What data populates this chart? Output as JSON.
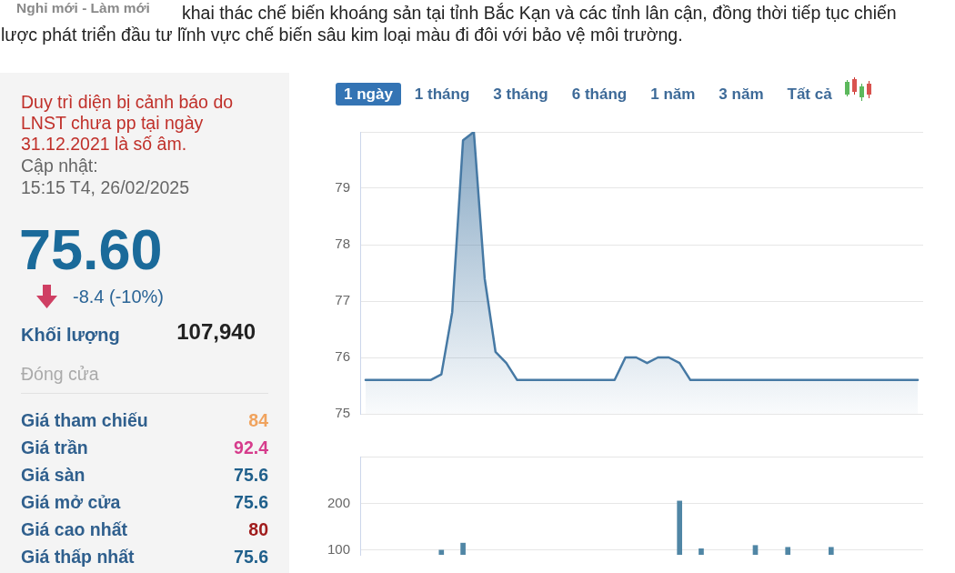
{
  "chart_data": [
    {
      "type": "other",
      "annotations": [
        "Nghỉ mới - Làm mới",
        "khai thác chế biến khoáng sản tại tỉnh Bắc Kạn và các tỉnh lân cận, đồng thời tiếp tục chiến",
        "lược phát triển đầu tư lĩnh vực chế biến sâu kim loại màu đi đôi với bảo vệ môi trường."
      ]
    },
    {
      "type": "other",
      "annotations": [
        "Duy trì diện bị cảnh báo do LNST chưa pp tại ngày 31.12.2021 là số âm.",
        "Cập nhật:",
        "15:15 T4, 26/02/2025",
        "75.60",
        "-8.4 (-10%)",
        "Khối lượng",
        "107,940",
        "Đóng cửa"
      ],
      "categories": [
        "Giá tham chiếu",
        "Giá trần",
        "Giá sàn",
        "Giá mở cửa",
        "Giá cao nhất",
        "Giá thấp nhất"
      ],
      "values": [
        84,
        92.4,
        75.6,
        75.6,
        80,
        75.6
      ],
      "data_labels": true
    },
    {
      "type": "other",
      "annotations": [
        "1 ngày",
        "1 tháng",
        "3 tháng",
        "6 tháng",
        "1 năm",
        "3 năm",
        "Tất cả"
      ]
    },
    {
      "type": "area",
      "categories": [
        null,
        null,
        null,
        null,
        null,
        null,
        null,
        null,
        null,
        null,
        null,
        null,
        null,
        null,
        null,
        null,
        null,
        null,
        null,
        null,
        null,
        null,
        null,
        null,
        null,
        null,
        null,
        null,
        null,
        null,
        null,
        null,
        null,
        null,
        null,
        null,
        null,
        null,
        null,
        null,
        null,
        null,
        null,
        null,
        null,
        null,
        null,
        null,
        null,
        null,
        null,
        null
      ],
      "values": [
        75.6,
        75.6,
        75.6,
        75.6,
        75.6,
        75.6,
        75.6,
        75.7,
        76.8,
        79.85,
        80,
        77.4,
        76.1,
        75.9,
        75.6,
        75.6,
        75.6,
        75.6,
        75.6,
        75.6,
        75.6,
        75.6,
        75.6,
        75.6,
        76,
        76,
        75.9,
        76,
        76,
        75.9,
        75.6,
        75.6,
        75.6,
        75.6,
        75.6,
        75.6,
        75.6,
        75.6,
        75.6,
        75.6,
        75.6,
        75.6,
        75.6,
        75.6,
        75.6,
        75.6,
        75.6,
        75.6,
        75.6,
        75.6,
        75.6,
        75.6
      ],
      "color": "#4679a4",
      "ylim": [
        75,
        80
      ],
      "yticks": [
        75,
        76,
        77,
        78,
        79,
        {
          "value": 80,
          "label": null
        }
      ],
      "grid": "y",
      "tick_labels": "y"
    },
    {
      "type": "bar",
      "categories": [
        null,
        null,
        null,
        null,
        null,
        null,
        null,
        null,
        null,
        null,
        null,
        null,
        null,
        null,
        null,
        null,
        null,
        null,
        null,
        null,
        null,
        null,
        null,
        null,
        null,
        null,
        null,
        null,
        null,
        null,
        null,
        null,
        null,
        null,
        null,
        null,
        null,
        null,
        null,
        null,
        null,
        null,
        null,
        null,
        null,
        null,
        null,
        null,
        null,
        null,
        null,
        null
      ],
      "values": [
        null,
        null,
        null,
        null,
        null,
        null,
        null,
        100,
        null,
        115,
        null,
        null,
        null,
        null,
        null,
        null,
        null,
        null,
        null,
        null,
        null,
        null,
        null,
        null,
        null,
        null,
        null,
        null,
        null,
        205,
        null,
        103,
        null,
        null,
        null,
        null,
        110,
        null,
        null,
        106,
        null,
        null,
        null,
        106,
        null,
        null,
        null,
        null,
        null,
        null,
        null,
        null
      ],
      "color": "#5086a5",
      "ylim": [
        90,
        300
      ],
      "yticks": [
        100,
        200,
        {
          "value": 300,
          "label": null
        }
      ],
      "grid": "y",
      "tick_labels": "y"
    }
  ]
}
